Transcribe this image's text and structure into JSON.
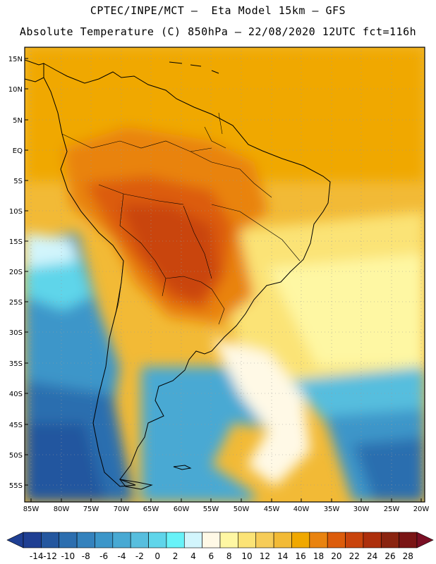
{
  "header": {
    "line1": "CPTEC/INPE/MCT –  Eta Model 15km – GFS",
    "line2": "Absolute Temperature (C) 850hPa – 22/08/2020 12UTC fct=116h"
  },
  "map": {
    "lat_labels": [
      "15N",
      "10N",
      "5N",
      "EQ",
      "5S",
      "10S",
      "15S",
      "20S",
      "25S",
      "30S",
      "35S",
      "40S",
      "45S",
      "50S",
      "55S"
    ],
    "lon_labels": [
      "85W",
      "80W",
      "75W",
      "70W",
      "65W",
      "60W",
      "55W",
      "50W",
      "45W",
      "40W",
      "35W",
      "30W",
      "25W",
      "20W"
    ]
  },
  "colorbar": {
    "labels": [
      "-14",
      "-12",
      "-10",
      "-8",
      "-6",
      "-4",
      "-2",
      "0",
      "2",
      "4",
      "6",
      "8",
      "10",
      "12",
      "14",
      "16",
      "18",
      "20",
      "22",
      "24",
      "26",
      "28"
    ],
    "colors": [
      "#1f3f93",
      "#24579f",
      "#2c6eaf",
      "#3482bd",
      "#3c96c9",
      "#48a9d3",
      "#57bede",
      "#5fd5ea",
      "#68f2f8",
      "#d2f5fc",
      "#fff9e6",
      "#fef7a3",
      "#fbe376",
      "#f6cc58",
      "#f2ba36",
      "#f0a800",
      "#e9830f",
      "#dc5c0b",
      "#c9440c",
      "#ad2f0c",
      "#8a2410",
      "#7a1515"
    ]
  }
}
